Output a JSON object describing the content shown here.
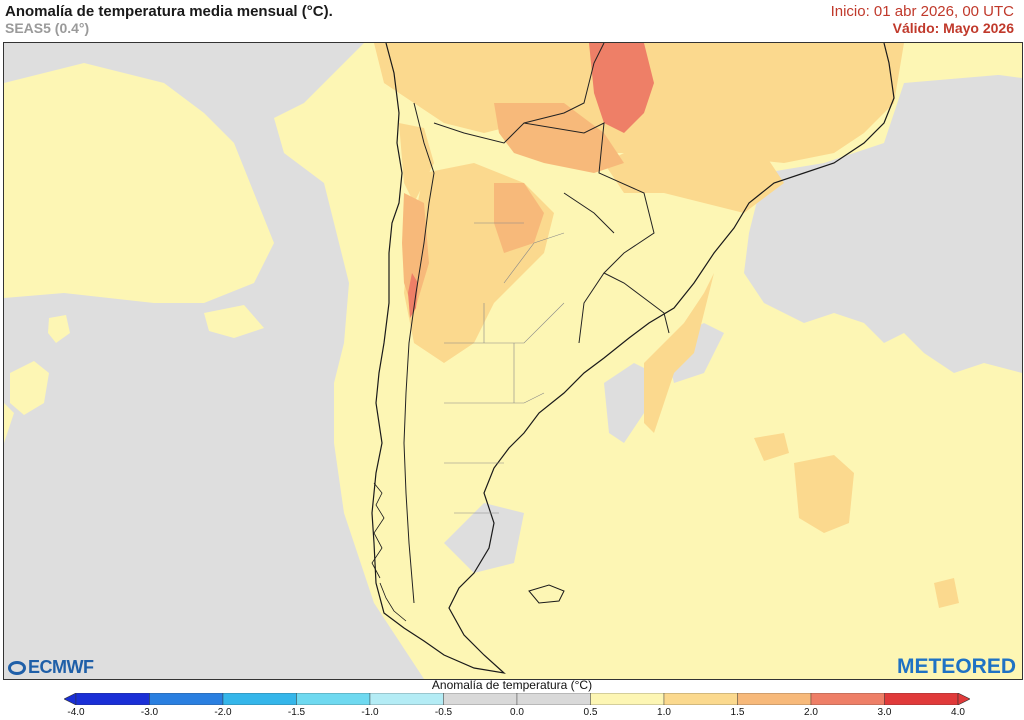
{
  "header": {
    "title": "Anomalía de temperatura media mensual (°C).",
    "subtitle": "SEAS5 (0.4°)",
    "init": "Inicio: 01 abr 2026, 00 UTC",
    "valid": "Válido: Mayo 2026"
  },
  "logos": {
    "left": "ECMWF",
    "right": "METEORED"
  },
  "colorbar": {
    "title": "Anomalía de temperatura (°C)",
    "ticks": [
      "-4.0",
      "-3.0",
      "-2.0",
      "-1.5",
      "-1.0",
      "-0.5",
      "0.0",
      "0.5",
      "1.0",
      "1.5",
      "2.0",
      "3.0",
      "4.0"
    ],
    "colors": [
      "#1a2fd6",
      "#2a7fe0",
      "#35b6ea",
      "#6fd9f0",
      "#b4ecf5",
      "#d9d9d9",
      "#d9d9d9",
      "#fdf6b4",
      "#fbd98e",
      "#f7b97a",
      "#ee7f67",
      "#e03a3a"
    ]
  },
  "map": {
    "region": "South America (southern cone)",
    "colors": {
      "ocean_base": "#fdf6b4",
      "neutral": "#dedede",
      "warm_1": "#fbd98e",
      "warm_2": "#f7b97a",
      "warm_3": "#ee7f67"
    }
  }
}
